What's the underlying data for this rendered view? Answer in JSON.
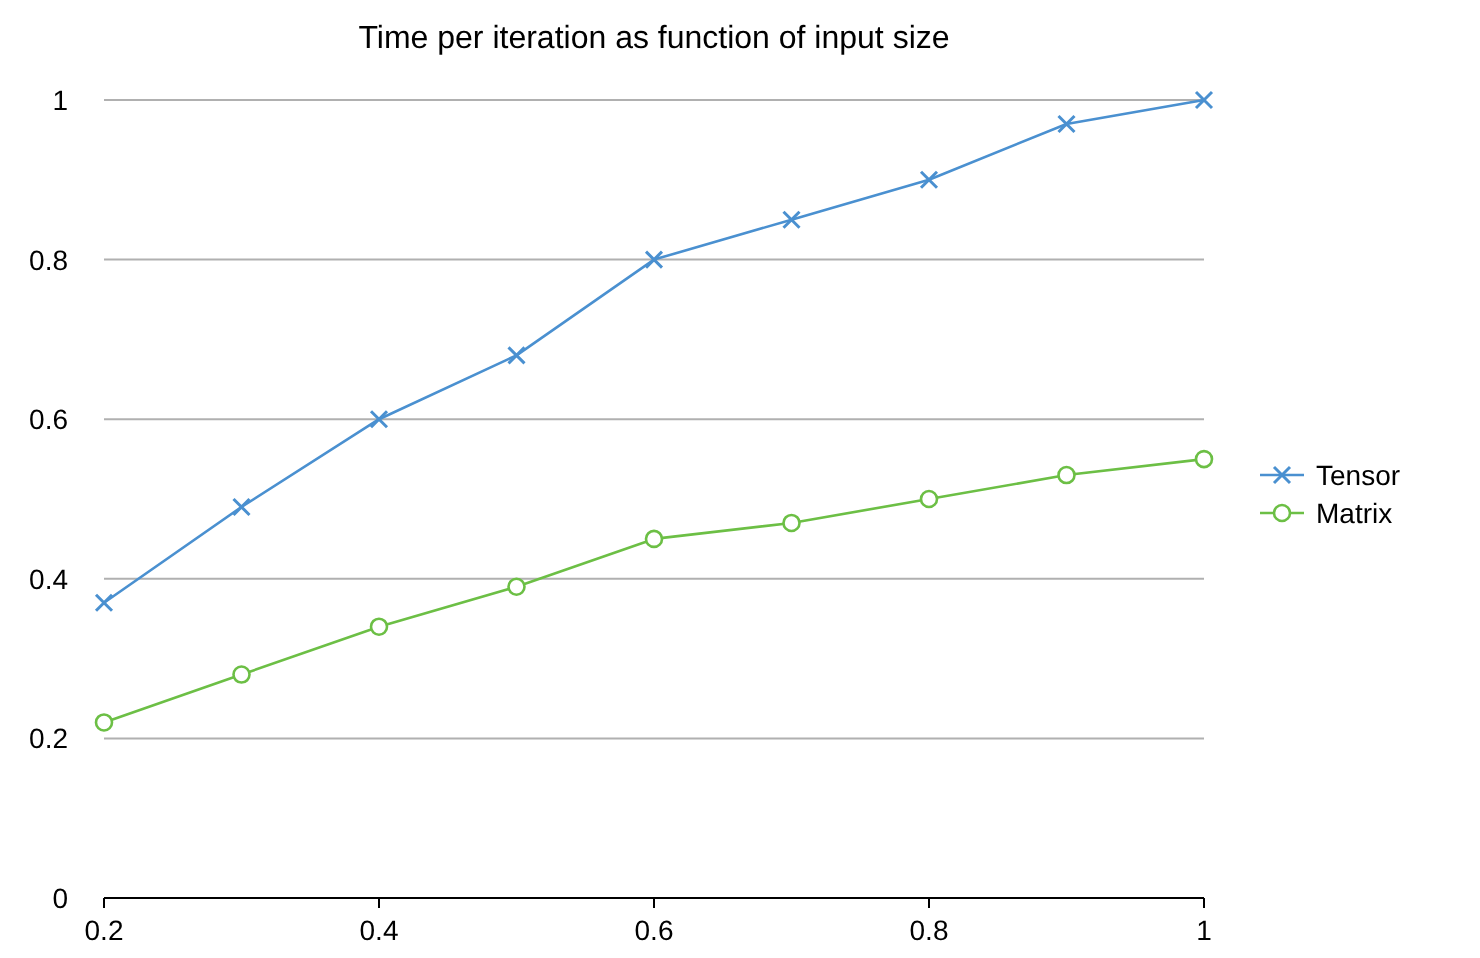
{
  "chart_data": {
    "type": "line",
    "title": "Time per iteration as function of input size",
    "x": [
      0.2,
      0.3,
      0.4,
      0.5,
      0.6,
      0.7,
      0.8,
      0.9,
      1
    ],
    "series": [
      {
        "name": "Tensor",
        "color": "#4a90d0",
        "marker": "cross",
        "values": [
          0.37,
          0.49,
          0.6,
          0.68,
          0.8,
          0.85,
          0.9,
          0.97,
          1
        ]
      },
      {
        "name": "Matrix",
        "color": "#6cbf45",
        "marker": "circle",
        "values": [
          0.22,
          0.28,
          0.34,
          0.39,
          0.45,
          0.47,
          0.5,
          0.53,
          0.55
        ]
      }
    ],
    "xlim": [
      0.2,
      1
    ],
    "xticks": [
      0.2,
      0.4,
      0.6,
      0.8,
      1
    ],
    "ylim": [
      0,
      1
    ],
    "yticks": [
      0,
      0.2,
      0.4,
      0.6,
      0.8,
      1
    ],
    "grid": "y",
    "legend": "right",
    "line_style": "solid"
  }
}
